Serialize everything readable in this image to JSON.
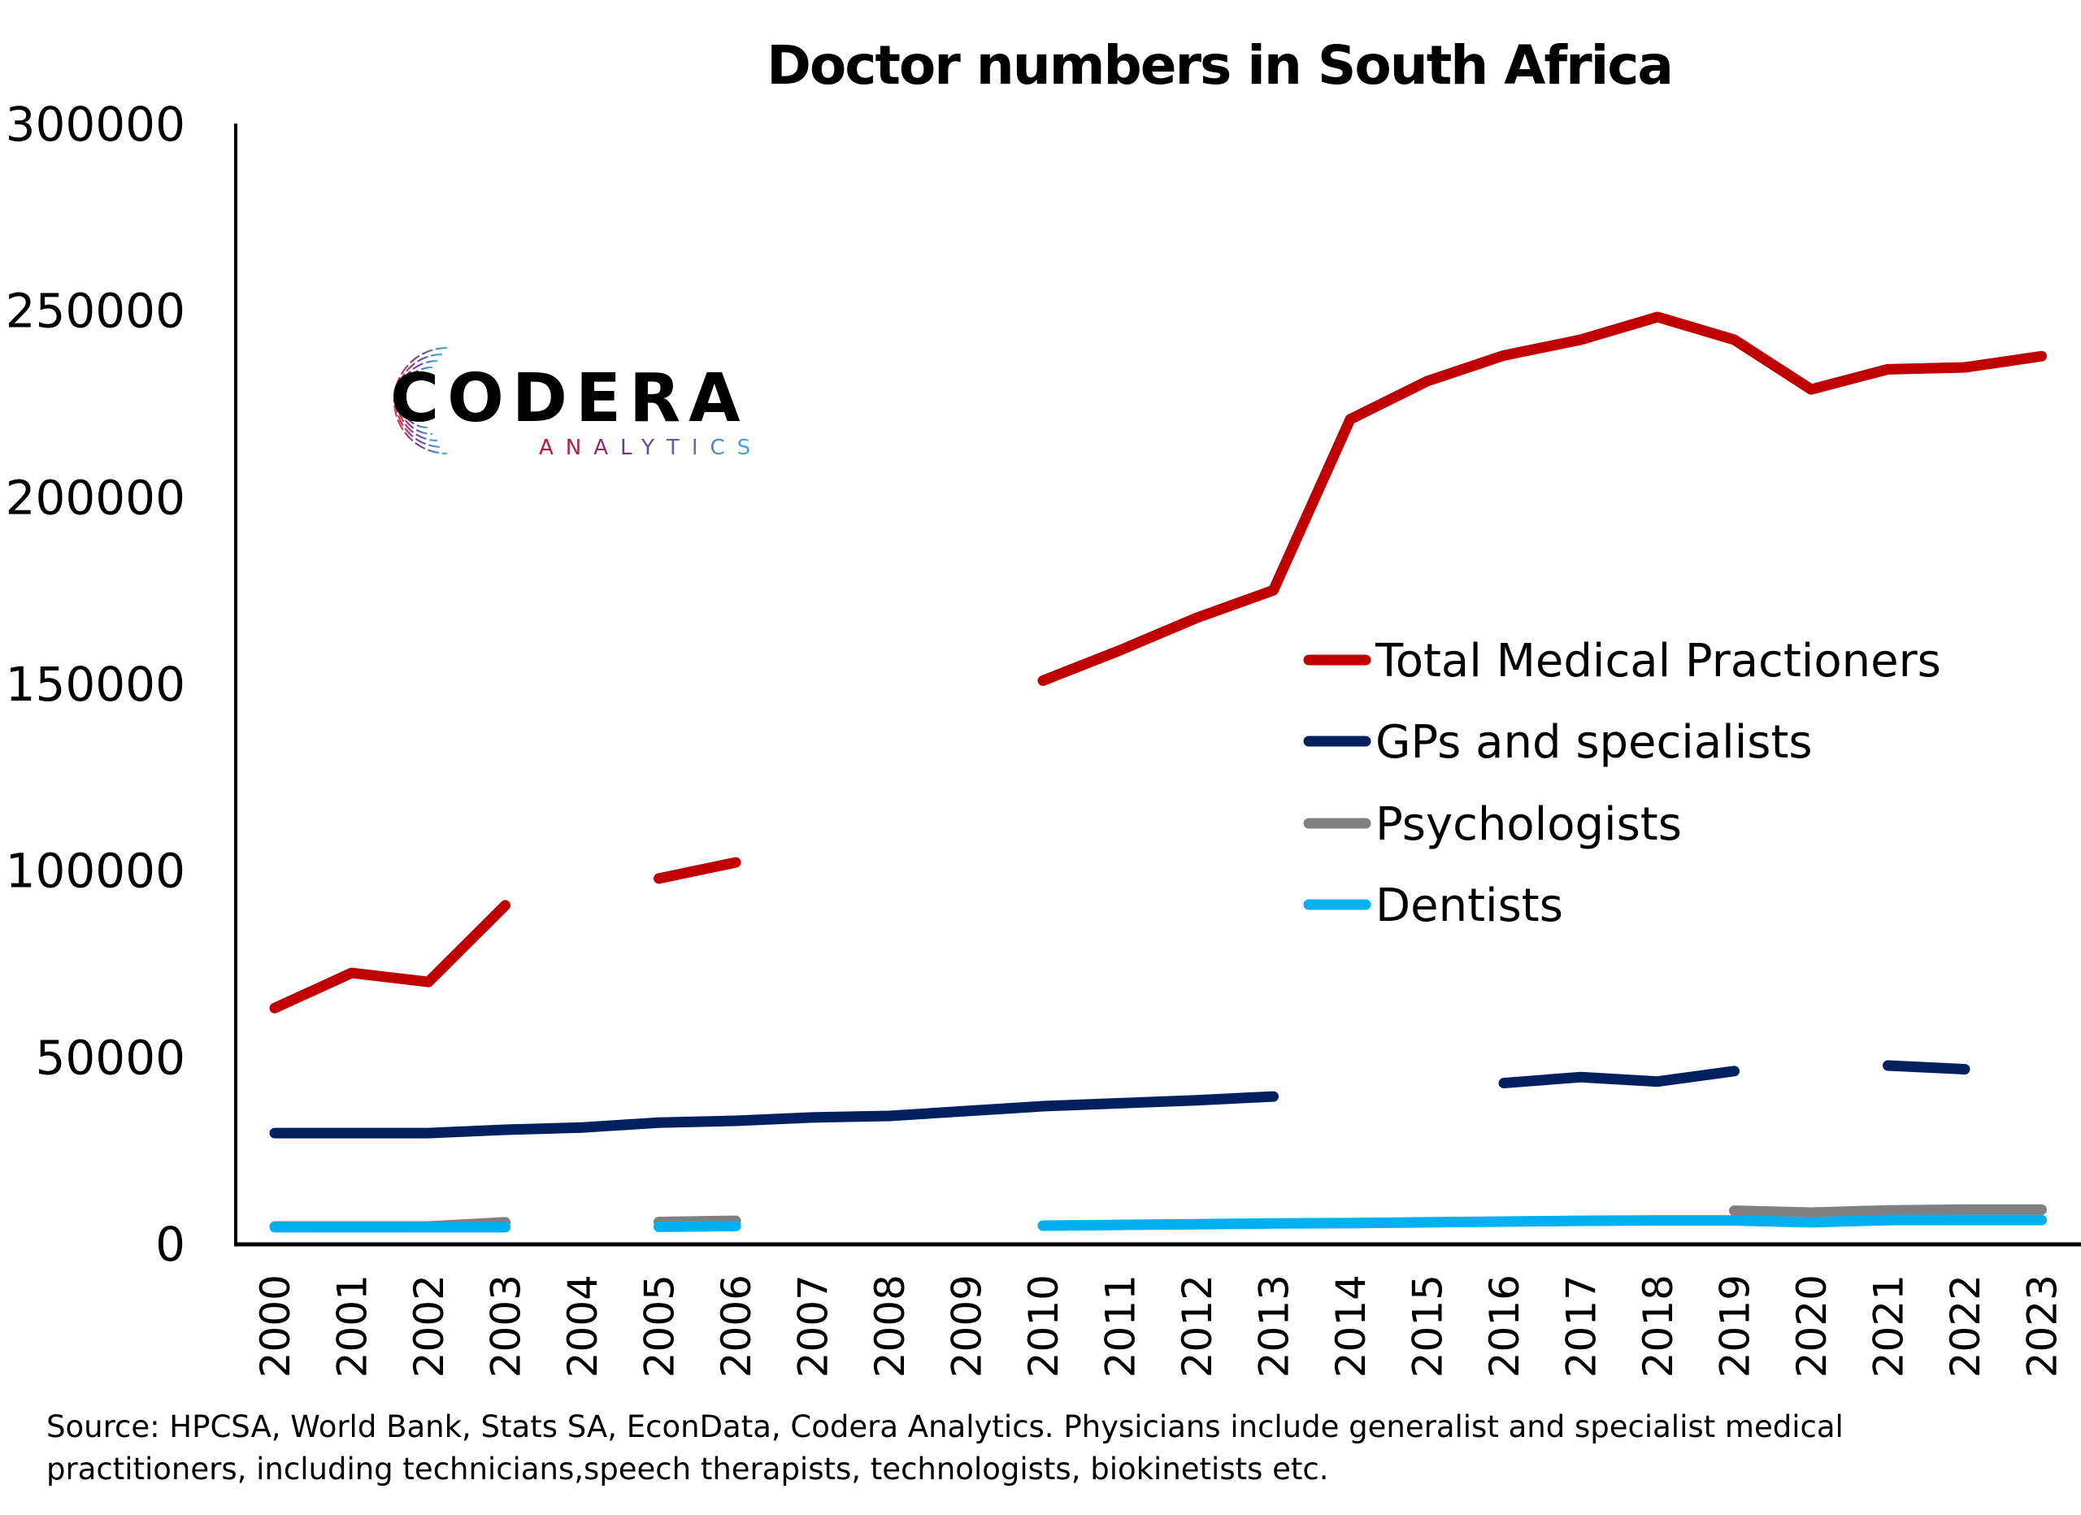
{
  "chart_data": {
    "type": "line",
    "title": "Doctor numbers in South Africa",
    "xlabel": "",
    "ylabel": "",
    "ylim": [
      0,
      300000
    ],
    "yticks": [
      "0",
      "50000",
      "100000",
      "150000",
      "200000",
      "250000",
      "300000"
    ],
    "ytick_values": [
      0,
      50000,
      100000,
      150000,
      200000,
      250000,
      300000
    ],
    "x": [
      "2000",
      "2001",
      "2002",
      "2003",
      "2004",
      "2005",
      "2006",
      "2007",
      "2008",
      "2009",
      "2010",
      "2011",
      "2012",
      "2013",
      "2014",
      "2015",
      "2016",
      "2017",
      "2018",
      "2019",
      "2020",
      "2021",
      "2022",
      "2023"
    ],
    "grid": false,
    "legend_position": "center-right",
    "series": [
      {
        "name": "Total Medical Practioners",
        "color": "#c00000",
        "values": [
          63300,
          72700,
          70300,
          90800,
          null,
          98000,
          102300,
          null,
          null,
          null,
          151000,
          159100,
          167800,
          175200,
          221000,
          231200,
          238100,
          242300,
          248400,
          242300,
          229000,
          234400,
          234900,
          237900
        ]
      },
      {
        "name": "GPs and specialists",
        "color": "#002060",
        "values": [
          29800,
          29800,
          29800,
          30700,
          31300,
          32600,
          33100,
          34000,
          34400,
          35700,
          37000,
          37800,
          38600,
          39600,
          null,
          null,
          43200,
          44800,
          43600,
          46400,
          null,
          47900,
          46900,
          null
        ]
      },
      {
        "name": "Psychologists",
        "color": "#808080",
        "values": [
          4800,
          4800,
          4800,
          5900,
          null,
          6000,
          6300,
          null,
          null,
          null,
          null,
          null,
          null,
          null,
          null,
          null,
          null,
          null,
          null,
          9000,
          8500,
          9100,
          9300,
          9300
        ]
      },
      {
        "name": "Dentists",
        "color": "#00b0f0",
        "values": [
          4600,
          4600,
          4600,
          4600,
          null,
          4700,
          4900,
          null,
          null,
          null,
          5000,
          5200,
          5400,
          5600,
          5700,
          5900,
          6100,
          6300,
          6400,
          6400,
          5900,
          6500,
          6500,
          6500
        ]
      }
    ]
  },
  "logo": {
    "word": "CODERA",
    "sub": "ANALYTICS"
  },
  "source": {
    "line1": "Source: HPCSA, World Bank, Stats SA, EconData, Codera Analytics. Physicians include generalist and specialist medical",
    "line2": "practitioners, including technicians,speech therapists, technologists, biokinetists etc."
  }
}
